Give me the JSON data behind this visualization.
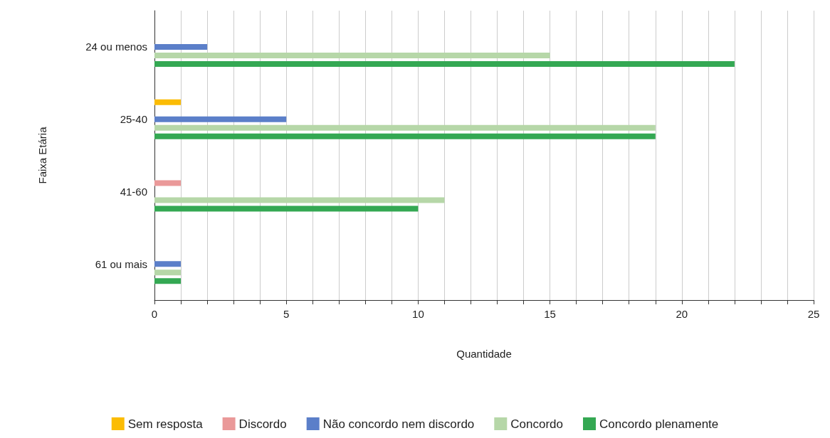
{
  "chart_data": {
    "type": "bar",
    "orientation": "horizontal",
    "xlabel": "Quantidade",
    "ylabel": "Faixa Etária",
    "categories": [
      "24 ou menos",
      "25-40",
      "41-60",
      "61 ou mais"
    ],
    "series": [
      {
        "name": "Sem resposta",
        "color": "#fbbc04",
        "values": [
          0,
          1,
          0,
          0
        ]
      },
      {
        "name": "Discordo",
        "color": "#ea9999",
        "values": [
          0,
          0,
          1,
          0
        ]
      },
      {
        "name": "Não concordo nem discordo",
        "color": "#5b7fc9",
        "values": [
          2,
          5,
          0,
          1
        ]
      },
      {
        "name": "Concordo",
        "color": "#b6d7a8",
        "values": [
          15,
          19,
          11,
          1
        ]
      },
      {
        "name": "Concordo plenamente",
        "color": "#34a853",
        "values": [
          22,
          19,
          10,
          1
        ]
      }
    ],
    "xlim": [
      0,
      25
    ],
    "xticks": [
      0,
      {
        "value": 1,
        "label": null
      },
      {
        "value": 2,
        "label": null
      },
      {
        "value": 3,
        "label": null
      },
      {
        "value": 4,
        "label": null
      },
      5,
      {
        "value": 6,
        "label": null
      },
      {
        "value": 7,
        "label": null
      },
      {
        "value": 8,
        "label": null
      },
      {
        "value": 9,
        "label": null
      },
      10,
      {
        "value": 11,
        "label": null
      },
      {
        "value": 12,
        "label": null
      },
      {
        "value": 13,
        "label": null
      },
      {
        "value": 14,
        "label": null
      },
      15,
      {
        "value": 16,
        "label": null
      },
      {
        "value": 17,
        "label": null
      },
      {
        "value": 18,
        "label": null
      },
      {
        "value": 19,
        "label": null
      },
      20,
      {
        "value": 21,
        "label": null
      },
      {
        "value": 22,
        "label": null
      },
      {
        "value": 23,
        "label": null
      },
      {
        "value": 24,
        "label": null
      },
      25
    ],
    "grid": "x",
    "legend": "bottom"
  }
}
